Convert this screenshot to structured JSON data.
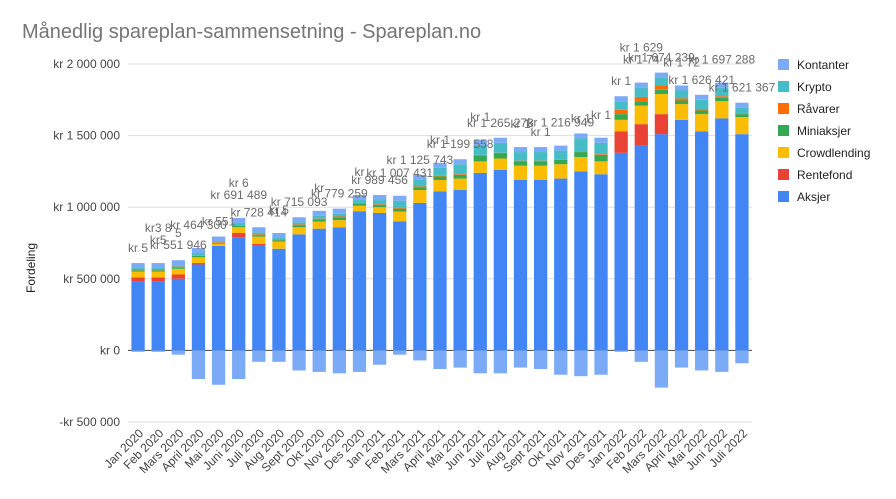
{
  "chart_data": {
    "type": "bar",
    "stacked": true,
    "title": "Månedlig spareplan-sammensetning - Spareplan.no",
    "ylabel": "Fordeling",
    "xlabel": "",
    "ylim": [
      -500000,
      2000000
    ],
    "yticks": [
      -500000,
      0,
      500000,
      1000000,
      1500000,
      2000000
    ],
    "ytick_labels": [
      "-kr  500 000",
      "kr    0",
      "kr  500 000",
      "kr 1 000 000",
      "kr 1 500 000",
      "kr 2 000 000"
    ],
    "grid": true,
    "legend_position": "right",
    "categories": [
      "Jan 2020",
      "Feb 2020",
      "Mars 2020",
      "April 2020",
      "Mai 2020",
      "Juni 2020",
      "Juli 2020",
      "Aug 2020",
      "Sept 2020",
      "Okt 2020",
      "Nov 2020",
      "Des 2020",
      "Jan 2021",
      "Feb 2021",
      "Mars 2021",
      "April 2021",
      "Mai 2021",
      "Juni 2021",
      "Juli 2021",
      "Aug 2021",
      "Sept 2021",
      "Okt 2021",
      "Nov 2021",
      "Des 2021",
      "Jan 2022",
      "Feb 2022",
      "Mars 2022",
      "April 2022",
      "Mai 2022",
      "Juni 2022",
      "Juli 2022"
    ],
    "series": [
      {
        "name": "Kontanter",
        "color": "#7baaf7",
        "values": [
          -10000,
          -10000,
          -30000,
          -200000,
          -240000,
          -200000,
          -80000,
          -80000,
          -140000,
          -150000,
          -160000,
          -150000,
          -100000,
          -30000,
          -70000,
          -130000,
          -120000,
          -160000,
          -160000,
          -120000,
          -130000,
          -170000,
          -180000,
          -170000,
          -10000,
          -80000,
          -260000,
          -120000,
          -140000,
          -150000,
          -90000
        ]
      },
      {
        "name": "Krypto",
        "color": "#46bdc6",
        "values": [
          10000,
          10000,
          10000,
          15000,
          5000,
          15000,
          15000,
          10000,
          15000,
          20000,
          20000,
          20000,
          30000,
          50000,
          45000,
          55000,
          70000,
          70000,
          70000,
          60000,
          60000,
          60000,
          90000,
          80000,
          60000,
          65000,
          55000,
          55000,
          65000,
          60000,
          40000
        ]
      },
      {
        "name": "Råvarer",
        "color": "#ff6d01",
        "values": [
          5000,
          5000,
          5000,
          5000,
          5000,
          5000,
          5000,
          5000,
          5000,
          5000,
          5000,
          5000,
          5000,
          5000,
          5000,
          5000,
          5000,
          5000,
          5000,
          5000,
          5000,
          5000,
          5000,
          5000,
          30000,
          30000,
          30000,
          15000,
          10000,
          10000,
          5000
        ]
      },
      {
        "name": "Miniaksjer",
        "color": "#34a853",
        "values": [
          10000,
          10000,
          10000,
          10000,
          5000,
          10000,
          10000,
          10000,
          15000,
          15000,
          20000,
          15000,
          15000,
          20000,
          20000,
          25000,
          25000,
          40000,
          35000,
          30000,
          30000,
          30000,
          35000,
          45000,
          40000,
          30000,
          30000,
          25000,
          25000,
          25000,
          20000
        ]
      },
      {
        "name": "Crowdlending",
        "color": "#fbbc04",
        "values": [
          40000,
          40000,
          40000,
          40000,
          15000,
          40000,
          50000,
          50000,
          50000,
          50000,
          50000,
          40000,
          40000,
          70000,
          90000,
          80000,
          80000,
          80000,
          80000,
          100000,
          100000,
          100000,
          100000,
          90000,
          80000,
          130000,
          140000,
          110000,
          120000,
          120000,
          120000
        ]
      },
      {
        "name": "Rentefond",
        "color": "#ea4335",
        "values": [
          30000,
          30000,
          30000,
          10000,
          0,
          30000,
          15000,
          0,
          0,
          0,
          0,
          0,
          0,
          0,
          0,
          0,
          0,
          0,
          0,
          0,
          0,
          0,
          0,
          0,
          150000,
          150000,
          140000,
          0,
          0,
          0,
          0
        ]
      },
      {
        "name": "Aksjer",
        "color": "#4285f4",
        "values": [
          480000,
          480000,
          500000,
          600000,
          730000,
          790000,
          730000,
          710000,
          810000,
          850000,
          860000,
          970000,
          960000,
          900000,
          1030000,
          1110000,
          1120000,
          1240000,
          1260000,
          1190000,
          1190000,
          1200000,
          1250000,
          1230000,
          1380000,
          1430000,
          1510000,
          1610000,
          1530000,
          1620000,
          1510000
        ]
      }
    ],
    "annotations": [
      {
        "category": "Jan 2020",
        "text": "kr 5"
      },
      {
        "category": "Feb 2020",
        "text": "kr5"
      },
      {
        "category": "Feb 2020",
        "text": "kr3 8"
      },
      {
        "category": "Mars 2020",
        "text": "kr 551 946"
      },
      {
        "category": "Mars 2020",
        "text": "5"
      },
      {
        "category": "April 2020",
        "text": "kr 464 300"
      },
      {
        "category": "Mai 2020",
        "text": "kr 551"
      },
      {
        "category": "Juni 2020",
        "text": "kr 691 489"
      },
      {
        "category": "Juni 2020",
        "text": "kr 6"
      },
      {
        "category": "Juli 2020",
        "text": "kr 728 414"
      },
      {
        "category": "Aug 2020",
        "text": "kr 5"
      },
      {
        "category": "Sept 2020",
        "text": "kr 715 093"
      },
      {
        "category": "Okt 2020",
        "text": "kr"
      },
      {
        "category": "Nov 2020",
        "text": "kr 779 259"
      },
      {
        "category": "Des 2020",
        "text": "kr"
      },
      {
        "category": "Jan 2021",
        "text": "kr 989 456"
      },
      {
        "category": "Feb 2021",
        "text": "kr 1 007 431"
      },
      {
        "category": "Mars 2021",
        "text": "kr 1 125 743"
      },
      {
        "category": "April 2021",
        "text": "kr 1"
      },
      {
        "category": "Mai 2021",
        "text": "kr 1 199 558"
      },
      {
        "category": "Juni 2021",
        "text": "kr 1"
      },
      {
        "category": "Juli 2021",
        "text": "kr 1 265 273"
      },
      {
        "category": "Aug 2021",
        "text": "kr 1"
      },
      {
        "category": "Sept 2021",
        "text": "kr 1"
      },
      {
        "category": "Okt 2021",
        "text": "kr 1 216 949"
      },
      {
        "category": "Nov 2021",
        "text": "kr 1"
      },
      {
        "category": "Des 2021",
        "text": "kr 1"
      },
      {
        "category": "Jan 2022",
        "text": "kr 1"
      },
      {
        "category": "Feb 2022",
        "text": "kr 1 74"
      },
      {
        "category": "Feb 2022",
        "text": "kr 1 629"
      },
      {
        "category": "Mars 2022",
        "text": "kr 1 674 239"
      },
      {
        "category": "April 2022",
        "text": "kr 1 72"
      },
      {
        "category": "Mai 2022",
        "text": "kr 1 626 421"
      },
      {
        "category": "Juni 2022",
        "text": "kr 1 697 288"
      },
      {
        "category": "Juli 2022",
        "text": "kr 1 621 367"
      }
    ]
  }
}
